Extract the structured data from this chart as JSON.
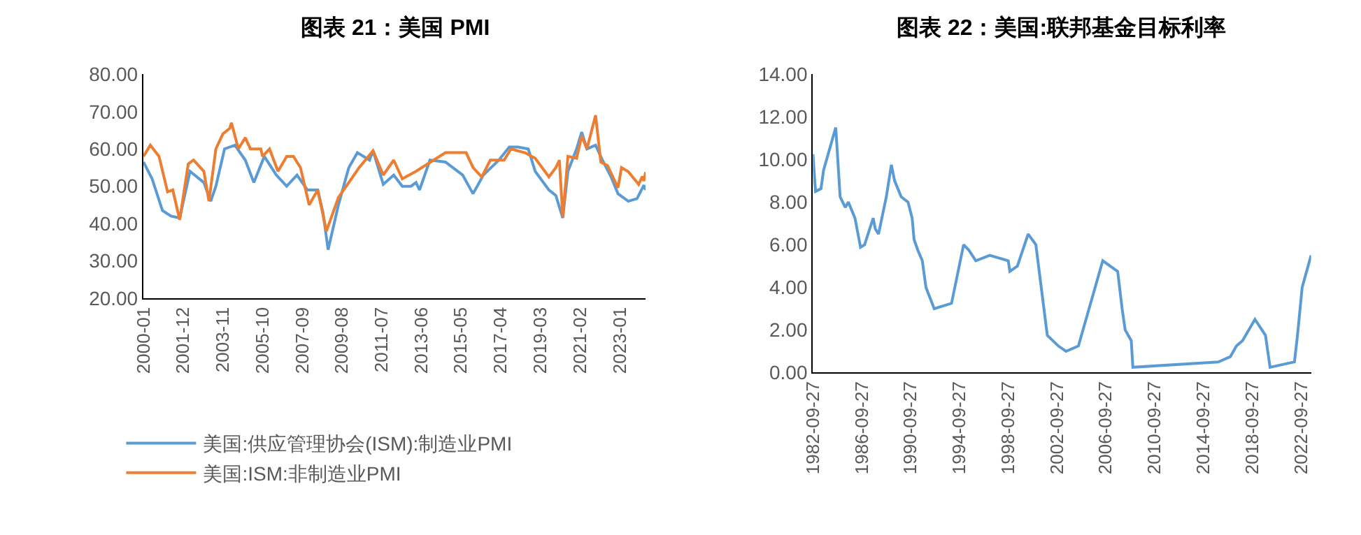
{
  "chart_data": [
    {
      "type": "line",
      "title": "图表 21：美国 PMI",
      "x": [
        "2000-01",
        "2000-06",
        "2000-12",
        "2001-05",
        "2001-10",
        "2002-04",
        "2002-12",
        "2003-04",
        "2003-07",
        "2003-12",
        "2004-06",
        "2004-12",
        "2005-05",
        "2005-11",
        "2006-06",
        "2006-12",
        "2007-06",
        "2007-12",
        "2008-06",
        "2008-09",
        "2008-12",
        "2009-06",
        "2009-12",
        "2010-05",
        "2010-12",
        "2011-02",
        "2011-08",
        "2012-02",
        "2012-07",
        "2012-12",
        "2013-03",
        "2013-05",
        "2013-11",
        "2014-08",
        "2015-06",
        "2015-12",
        "2016-06",
        "2017-03",
        "2017-09",
        "2018-02",
        "2018-08",
        "2018-12",
        "2019-08",
        "2019-12",
        "2020-04",
        "2020-07",
        "2020-12",
        "2021-03",
        "2021-06",
        "2021-11",
        "2022-03",
        "2022-08",
        "2022-12",
        "2023-06",
        "2023-11",
        "2024-03",
        "2024-04"
      ],
      "series": [
        {
          "name": "美国:供应管理协会(ISM):制造业PMI",
          "color": "#5b9bd5",
          "values": [
            56.5,
            52,
            43.5,
            42,
            41.5,
            54,
            51,
            46,
            50,
            60,
            61,
            57,
            51,
            58,
            53,
            50,
            53,
            49,
            49,
            43,
            33,
            45,
            55,
            59,
            57,
            59.5,
            50.5,
            53,
            50,
            50,
            51,
            49,
            57,
            56.5,
            53,
            48,
            53,
            57,
            60.5,
            60.5,
            60,
            54,
            49,
            47.5,
            41.5,
            54,
            60,
            64.5,
            60,
            61,
            57,
            52.5,
            48,
            46,
            46.7,
            50.3,
            49
          ]
        },
        {
          "name": "美国:ISM:非制造业PMI",
          "color": "#ed7d31",
          "x": [
            "2000-01",
            "2000-05",
            "2000-10",
            "2001-03",
            "2001-06",
            "2001-10",
            "2002-03",
            "2002-06",
            "2002-12",
            "2003-03",
            "2003-07",
            "2003-11",
            "2004-03",
            "2004-04",
            "2004-08",
            "2004-12",
            "2005-03",
            "2005-09",
            "2005-10",
            "2006-02",
            "2006-07",
            "2006-12",
            "2007-04",
            "2007-08",
            "2008-01",
            "2008-06",
            "2008-11",
            "2009-06",
            "2009-12",
            "2010-06",
            "2011-02",
            "2011-08",
            "2012-02",
            "2012-07",
            "2013-03",
            "2014-08",
            "2015-08",
            "2015-12",
            "2016-05",
            "2016-10",
            "2017-06",
            "2017-10",
            "2018-06",
            "2018-12",
            "2019-08",
            "2019-12",
            "2020-02",
            "2020-04",
            "2020-07",
            "2020-12",
            "2021-03",
            "2021-06",
            "2021-11",
            "2022-02",
            "2022-06",
            "2022-12",
            "2023-02",
            "2023-06",
            "2023-12",
            "2024-02",
            "2024-03",
            "2024-04"
          ],
          "values": [
            58,
            61,
            58,
            48.5,
            49,
            41,
            56,
            57,
            54,
            46,
            60,
            64,
            65.5,
            67,
            60,
            63,
            60,
            60,
            58,
            60,
            54,
            58,
            58,
            55,
            45,
            49,
            38,
            47,
            51,
            55,
            59.5,
            53,
            57,
            52,
            54,
            59,
            59,
            55,
            52.5,
            57,
            57,
            60,
            59,
            57.5,
            52.5,
            55,
            57,
            41.8,
            58,
            57.5,
            63.5,
            60,
            69,
            56.5,
            55.5,
            49.6,
            55,
            53.9,
            50.5,
            52.6,
            51.4,
            53.8
          ]
        }
      ],
      "xlim": [
        "2000-01",
        "2024-04"
      ],
      "xticks": [
        "2000-01",
        "2001-12",
        "2003-11",
        "2005-10",
        "2007-09",
        "2009-08",
        "2011-07",
        "2013-06",
        "2015-05",
        "2017-04",
        "2019-03",
        "2021-02",
        "2023-01"
      ],
      "ylim": [
        20,
        80
      ],
      "yticks": [
        {
          "value": 20,
          "label": "20.00"
        },
        {
          "value": 30,
          "label": "30.00"
        },
        {
          "value": 40,
          "label": "40.00"
        },
        {
          "value": 50,
          "label": "50.00"
        },
        {
          "value": 60,
          "label": "60.00"
        },
        {
          "value": 70,
          "label": "70.00"
        },
        {
          "value": 80,
          "label": "80.00"
        }
      ],
      "legend": "bottom"
    },
    {
      "type": "line",
      "title": "图表 22：美国:联邦基金目标利率",
      "x": [
        "1982-09-27",
        "1982-11-19",
        "1982-12-14",
        "1983-05-25",
        "1983-08-10",
        "1984-08-09",
        "1984-12-18",
        "1985-05-20",
        "1985-08-21",
        "1986-03-07",
        "1986-08-21",
        "1986-12-20",
        "1987-09-04",
        "1987-11-04",
        "1988-02-11",
        "1988-10-01",
        "1989-03-01",
        "1989-06-06",
        "1989-12-20",
        "1990-07-13",
        "1990-11-13",
        "1991-01-09",
        "1991-04-30",
        "1991-09-13",
        "1992-01-01",
        "1992-09-04",
        "1994-02-04",
        "1995-02-01",
        "1995-07-06",
        "1996-01-31",
        "1997-03-25",
        "1998-09-29",
        "1998-11-17",
        "1999-06-30",
        "2000-05-16",
        "2001-01-03",
        "2001-12-11",
        "2002-11-06",
        "2003-06-25",
        "2004-06-30",
        "2006-06-29",
        "2007-09-18",
        "2008-01-30",
        "2008-04-30",
        "2008-10-29",
        "2008-12-16",
        "2015-12-16",
        "2016-12-14",
        "2017-06-14",
        "2017-12-13",
        "2018-12-19",
        "2019-10-30",
        "2020-03-15",
        "2022-03-16",
        "2022-06-15",
        "2022-11-02",
        "2023-07-26"
      ],
      "series": [
        {
          "color": "#5b9bd5",
          "values": [
            10.25,
            9.0,
            8.5,
            8.63,
            9.5,
            11.5,
            8.25,
            7.75,
            8.0,
            7.25,
            5.88,
            6.0,
            7.25,
            6.75,
            6.5,
            8.25,
            9.75,
            9.0,
            8.25,
            8.0,
            7.25,
            6.25,
            5.75,
            5.25,
            4.0,
            3.0,
            3.25,
            6.0,
            5.75,
            5.25,
            5.5,
            5.25,
            4.75,
            5.0,
            6.5,
            6.0,
            1.75,
            1.25,
            1.0,
            1.25,
            5.25,
            4.75,
            3.0,
            2.0,
            1.5,
            0.25,
            0.5,
            0.75,
            1.25,
            1.5,
            2.5,
            1.75,
            0.25,
            0.5,
            1.75,
            4.0,
            5.5
          ]
        }
      ],
      "xlim": [
        "1982-09-27",
        "2023-07-26"
      ],
      "xticks": [
        "1982-09-27",
        "1986-09-27",
        "1990-09-27",
        "1994-09-27",
        "1998-09-27",
        "2002-09-27",
        "2006-09-27",
        "2010-09-27",
        "2014-09-27",
        "2018-09-27",
        "2022-09-27"
      ],
      "ylim": [
        0,
        14
      ],
      "yticks": [
        {
          "value": 0,
          "label": "0.00"
        },
        {
          "value": 2,
          "label": "2.00"
        },
        {
          "value": 4,
          "label": "4.00"
        },
        {
          "value": 6,
          "label": "6.00"
        },
        {
          "value": 8,
          "label": "8.00"
        },
        {
          "value": 10,
          "label": "10.00"
        },
        {
          "value": 12,
          "label": "12.00"
        },
        {
          "value": 14,
          "label": "14.00"
        }
      ]
    }
  ]
}
